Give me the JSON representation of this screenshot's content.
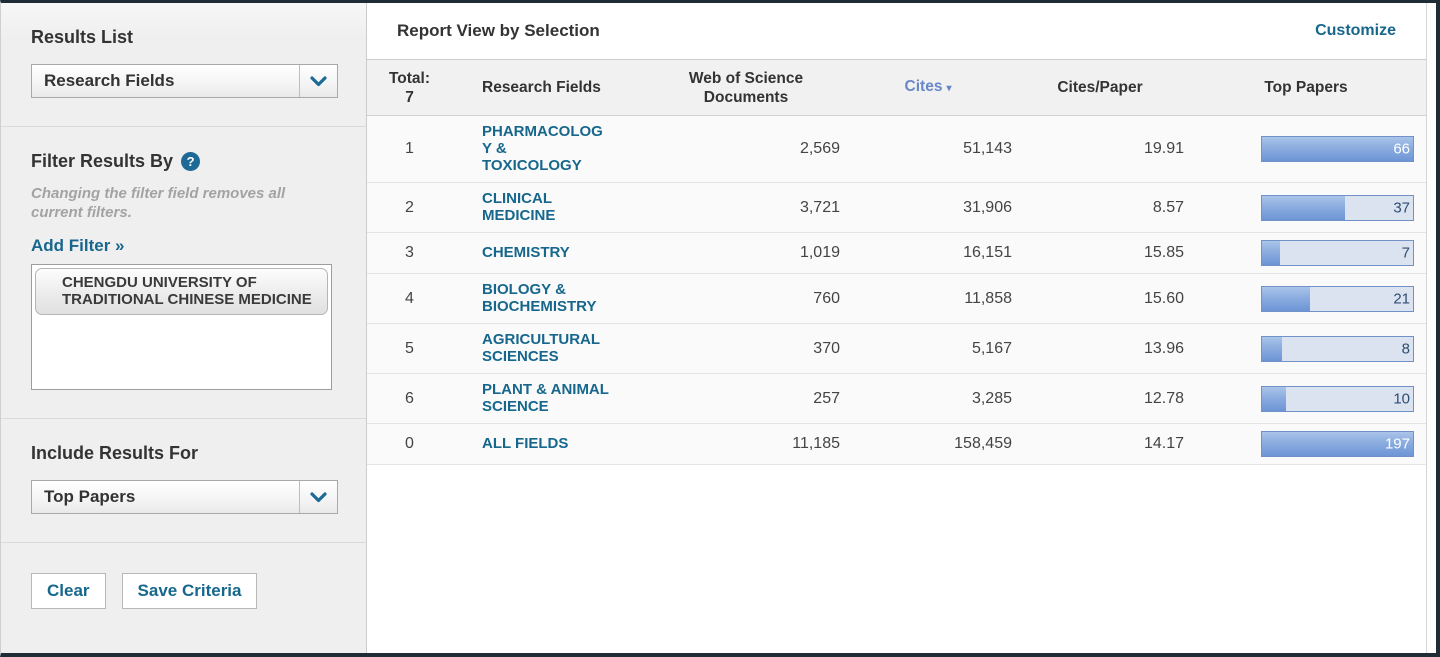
{
  "sidebar": {
    "results_list": {
      "label": "Results List",
      "selected": "Research Fields"
    },
    "filter": {
      "label": "Filter Results By",
      "help_icon": "?",
      "note": "Changing the filter field removes all current filters.",
      "add_filter_label": "Add Filter »",
      "selected_filter": "CHENGDU UNIVERSITY OF TRADITIONAL CHINESE MEDICINE"
    },
    "include_results": {
      "label": "Include Results For",
      "selected": "Top Papers"
    },
    "buttons": {
      "clear": "Clear",
      "save": "Save Criteria"
    }
  },
  "main": {
    "title": "Report View by Selection",
    "customize_label": "Customize",
    "table": {
      "total_label": "Total:",
      "total_value": "7",
      "col_field": "Research Fields",
      "col_docs": "Web of Science Documents",
      "col_cites": "Cites",
      "col_cites_sort_icon": "▾",
      "col_cpp": "Cites/Paper",
      "col_top": "Top Papers",
      "rows": [
        {
          "rank": "1",
          "field": "PHARMACOLOGY & TOXICOLOGY",
          "docs": "2,569",
          "cites": "51,143",
          "cpp": "19.91",
          "top_papers": "66",
          "bar_percent": 100
        },
        {
          "rank": "2",
          "field": "CLINICAL MEDICINE",
          "docs": "3,721",
          "cites": "31,906",
          "cpp": "8.57",
          "top_papers": "37",
          "bar_percent": 55
        },
        {
          "rank": "3",
          "field": "CHEMISTRY",
          "docs": "1,019",
          "cites": "16,151",
          "cpp": "15.85",
          "top_papers": "7",
          "bar_percent": 12
        },
        {
          "rank": "4",
          "field": "BIOLOGY & BIOCHEMISTRY",
          "docs": "760",
          "cites": "11,858",
          "cpp": "15.60",
          "top_papers": "21",
          "bar_percent": 32
        },
        {
          "rank": "5",
          "field": "AGRICULTURAL SCIENCES",
          "docs": "370",
          "cites": "5,167",
          "cpp": "13.96",
          "top_papers": "8",
          "bar_percent": 13
        },
        {
          "rank": "6",
          "field": "PLANT & ANIMAL SCIENCE",
          "docs": "257",
          "cites": "3,285",
          "cpp": "12.78",
          "top_papers": "10",
          "bar_percent": 16
        },
        {
          "rank": "0",
          "field": "ALL FIELDS",
          "docs": "11,185",
          "cites": "158,459",
          "cpp": "14.17",
          "top_papers": "197",
          "bar_percent": 100
        }
      ]
    }
  },
  "colors": {
    "accent_teal": "#17678d",
    "sorted_header_blue": "#6787c9",
    "bar_fill_blue": "#6d95d6",
    "bar_track": "#dce3f0"
  }
}
